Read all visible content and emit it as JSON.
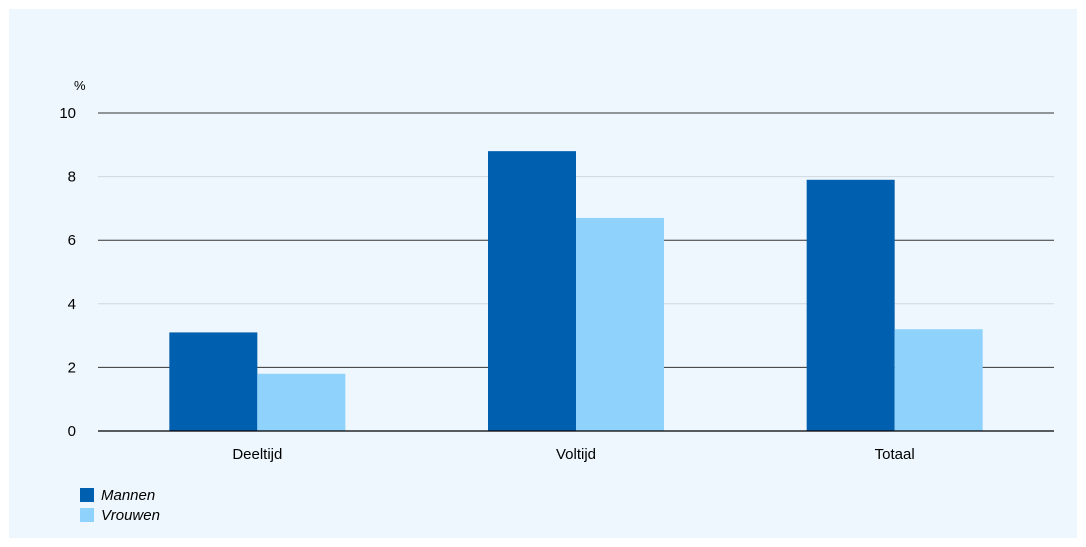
{
  "chart_data": {
    "type": "bar",
    "ylabel": "%",
    "ylim": [
      0,
      10
    ],
    "yticks": [
      0,
      2,
      4,
      6,
      8,
      10
    ],
    "categories": [
      "Deeltijd",
      "Voltijd",
      "Totaal"
    ],
    "series": [
      {
        "name": "Mannen",
        "color": "#005fae",
        "values": [
          3.1,
          8.8,
          7.9
        ]
      },
      {
        "name": "Vrouwen",
        "color": "#8fd2fb",
        "values": [
          1.8,
          6.7,
          3.2
        ]
      }
    ],
    "grid": true,
    "legend_position": "bottom-left"
  }
}
